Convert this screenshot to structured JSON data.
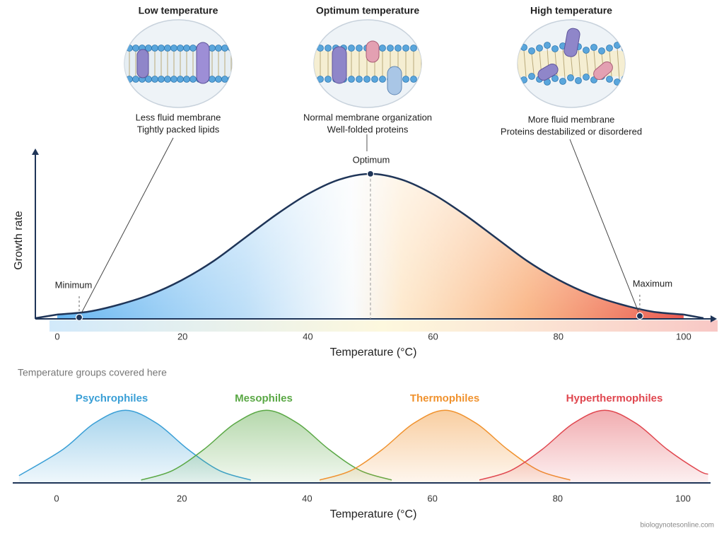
{
  "panels": [
    {
      "title": "Low temperature",
      "lines": [
        "Less fluid membrane",
        "Tightly packed lipids"
      ]
    },
    {
      "title": "Optimum temperature",
      "lines": [
        "Normal membrane organization",
        "Well-folded proteins"
      ]
    },
    {
      "title": "High temperature",
      "lines": [
        "More fluid membrane",
        "Proteins destabilized or disordered"
      ]
    }
  ],
  "chart_data": [
    {
      "type": "line",
      "x_label": "Temperature (°C)",
      "y_label": "Growth rate",
      "x": [
        0,
        5,
        10,
        15,
        20,
        25,
        30,
        35,
        40,
        45,
        50,
        55,
        60,
        65,
        70,
        75,
        80,
        85,
        90,
        95,
        100
      ],
      "values": [
        0.03,
        0.05,
        0.1,
        0.17,
        0.27,
        0.4,
        0.56,
        0.72,
        0.86,
        0.96,
        1,
        0.96,
        0.86,
        0.72,
        0.56,
        0.4,
        0.27,
        0.17,
        0.1,
        0.05,
        0.03
      ],
      "color": "#1f3558",
      "xlim": [
        -3.5,
        104.3
      ],
      "ylim": [
        0,
        1.17
      ],
      "xticks": [
        0,
        20,
        40,
        60,
        80,
        100
      ],
      "points": [
        {
          "label": "Minimum",
          "x": 3.5,
          "y": 0.01
        },
        {
          "label": "Optimum",
          "x": 50,
          "y": 1
        },
        {
          "label": "Maximum",
          "x": 93,
          "y": 0.02
        }
      ]
    },
    {
      "type": "area",
      "title": "Temperature groups covered here",
      "x_label": "Temperature (°C)",
      "xlim": [
        -7,
        104.4
      ],
      "ylim": [
        0,
        1.1
      ],
      "xticks": [
        0,
        20,
        40,
        60,
        80,
        100
      ],
      "series": [
        {
          "name": "Psychrophiles",
          "color": "#3a9fd6",
          "x": [
            -6,
            1,
            6,
            11,
            16,
            21,
            26,
            31
          ],
          "values": [
            0.1,
            0.46,
            0.82,
            1,
            0.82,
            0.46,
            0.17,
            0.04
          ]
        },
        {
          "name": "Mesophiles",
          "color": "#5aa845",
          "x": [
            13.5,
            18.5,
            23.5,
            28.5,
            33.5,
            38.5,
            43.5,
            48.5,
            53.5
          ],
          "values": [
            0.04,
            0.17,
            0.46,
            0.82,
            1,
            0.82,
            0.46,
            0.17,
            0.04
          ]
        },
        {
          "name": "Thermophiles",
          "color": "#f0922e",
          "x": [
            42,
            47,
            52,
            57,
            62,
            67,
            72,
            77,
            82
          ],
          "values": [
            0.04,
            0.17,
            0.46,
            0.82,
            1,
            0.82,
            0.46,
            0.17,
            0.04
          ]
        },
        {
          "name": "Hyperthermophiles",
          "color": "#e0474f",
          "x": [
            67.5,
            72.5,
            77.5,
            82.5,
            87.5,
            92.5,
            97.5,
            102.5,
            104
          ],
          "values": [
            0.04,
            0.17,
            0.46,
            0.82,
            1,
            0.82,
            0.46,
            0.17,
            0.12
          ]
        }
      ]
    }
  ],
  "source": "biologynotesonline.com"
}
